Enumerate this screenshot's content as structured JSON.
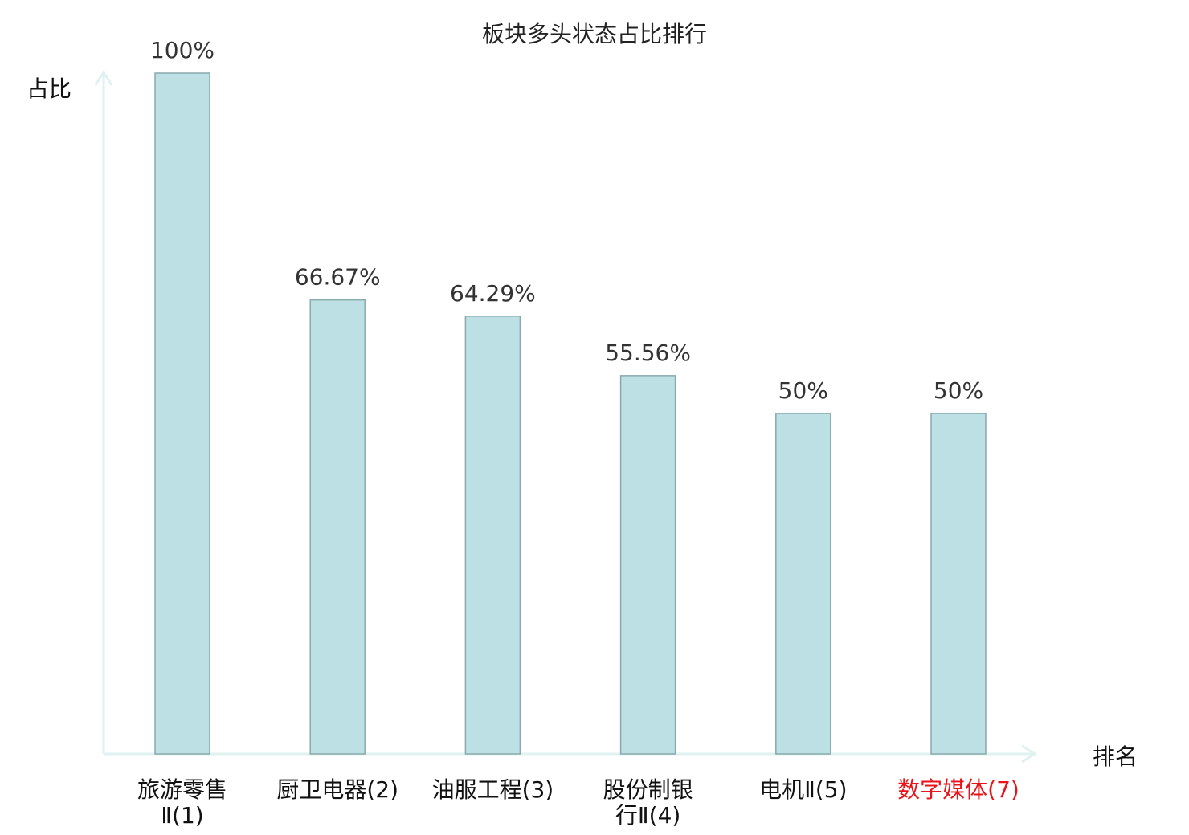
{
  "chart_data": {
    "type": "bar",
    "title": "板块多头状态占比排行",
    "xlabel": "排名",
    "ylabel": "占比",
    "ylim": [
      0,
      100
    ],
    "grid": false,
    "categories": [
      [
        "旅游零售",
        "Ⅱ(1)"
      ],
      [
        "厨卫电器(2)"
      ],
      [
        "油服工程(3)"
      ],
      [
        "股份制银",
        "行Ⅱ(4)"
      ],
      [
        "电机Ⅱ(5)"
      ],
      [
        "数字媒体(7)"
      ]
    ],
    "values": [
      100,
      66.67,
      64.29,
      55.56,
      50,
      50
    ],
    "value_labels": [
      "100%",
      "66.67%",
      "64.29%",
      "55.56%",
      "50%",
      "50%"
    ],
    "highlight_index": 5,
    "colors": {
      "bar_fill": "#bce0e3",
      "bar_stroke": "#8aa9ab",
      "axis": "#dff2f0",
      "label": "#111111",
      "highlight_label": "#e8141a"
    }
  }
}
